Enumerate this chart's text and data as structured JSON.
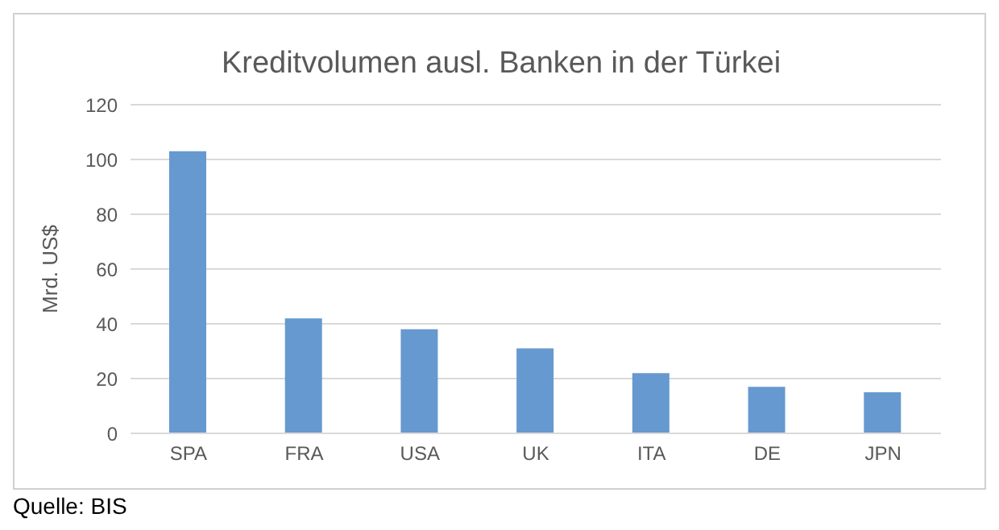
{
  "chart_data": {
    "type": "bar",
    "title": "Kreditvolumen ausl. Banken in der Türkei",
    "ylabel": "Mrd. US$",
    "categories": [
      "SPA",
      "FRA",
      "USA",
      "UK",
      "ITA",
      "DE",
      "JPN"
    ],
    "values": [
      103,
      42,
      38,
      31,
      22,
      17,
      15
    ],
    "color": "#6699cf",
    "ylim": [
      0,
      120
    ],
    "yticks": [
      0,
      20,
      40,
      60,
      80,
      100,
      120
    ],
    "grid": "y",
    "annotations": [
      "Quelle: BIS"
    ]
  }
}
